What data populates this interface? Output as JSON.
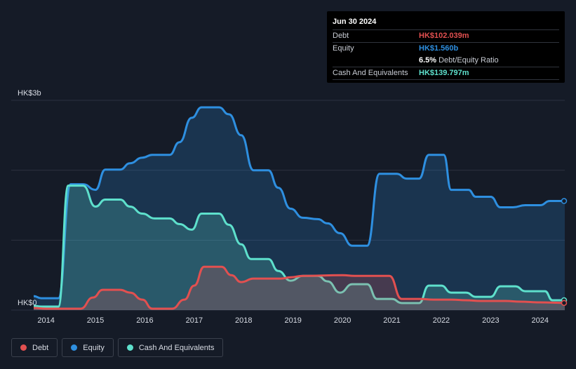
{
  "tooltip": {
    "date": "Jun 30 2024",
    "rows": [
      {
        "label": "Debt",
        "value": "HK$102.039m",
        "color": "#e25050"
      },
      {
        "label": "Equity",
        "value": "HK$1.560b",
        "color": "#2e8fe0"
      },
      {
        "label": "",
        "value": "6.5%",
        "suffix": "Debt/Equity Ratio",
        "color": "#ffffff"
      },
      {
        "label": "Cash And Equivalents",
        "value": "HK$139.797m",
        "color": "#5ee0cc"
      }
    ]
  },
  "legend": [
    {
      "label": "Debt",
      "color": "#e25050"
    },
    {
      "label": "Equity",
      "color": "#2e8fe0"
    },
    {
      "label": "Cash And Equivalents",
      "color": "#5ee0cc"
    }
  ],
  "chart_data": {
    "type": "area",
    "y_top_label": "HK$3b",
    "y_bottom_label": "HK$0",
    "ylim": [
      0,
      3000
    ],
    "xlim": [
      2013.75,
      2024.5
    ],
    "grid": true,
    "x_ticks": [
      2014,
      2015,
      2016,
      2017,
      2018,
      2019,
      2020,
      2021,
      2022,
      2023,
      2024
    ],
    "x_tick_labels": [
      "2014",
      "2015",
      "2016",
      "2017",
      "2018",
      "2019",
      "2020",
      "2021",
      "2022",
      "2023",
      "2024"
    ],
    "series": [
      {
        "name": "Equity",
        "color": "#2e8fe0",
        "points": [
          [
            2013.75,
            200
          ],
          [
            2013.9,
            170
          ],
          [
            2014.25,
            170
          ],
          [
            2014.5,
            1800
          ],
          [
            2014.75,
            1800
          ],
          [
            2015.0,
            1720
          ],
          [
            2015.2,
            2010
          ],
          [
            2015.5,
            2010
          ],
          [
            2015.7,
            2100
          ],
          [
            2015.95,
            2180
          ],
          [
            2016.15,
            2220
          ],
          [
            2016.5,
            2220
          ],
          [
            2016.7,
            2400
          ],
          [
            2016.95,
            2750
          ],
          [
            2017.15,
            2900
          ],
          [
            2017.5,
            2900
          ],
          [
            2017.7,
            2800
          ],
          [
            2017.95,
            2500
          ],
          [
            2018.2,
            2000
          ],
          [
            2018.5,
            2000
          ],
          [
            2018.7,
            1750
          ],
          [
            2018.95,
            1450
          ],
          [
            2019.2,
            1320
          ],
          [
            2019.5,
            1300
          ],
          [
            2019.7,
            1240
          ],
          [
            2019.95,
            1100
          ],
          [
            2020.2,
            920
          ],
          [
            2020.5,
            920
          ],
          [
            2020.75,
            1950
          ],
          [
            2021.1,
            1950
          ],
          [
            2021.3,
            1880
          ],
          [
            2021.55,
            1880
          ],
          [
            2021.75,
            2220
          ],
          [
            2022.05,
            2220
          ],
          [
            2022.2,
            1720
          ],
          [
            2022.55,
            1720
          ],
          [
            2022.7,
            1620
          ],
          [
            2023.0,
            1620
          ],
          [
            2023.2,
            1470
          ],
          [
            2023.45,
            1470
          ],
          [
            2023.7,
            1500
          ],
          [
            2024.0,
            1500
          ],
          [
            2024.2,
            1560
          ],
          [
            2024.5,
            1560
          ]
        ]
      },
      {
        "name": "Cash And Equivalents",
        "color": "#5ee0cc",
        "points": [
          [
            2013.75,
            60
          ],
          [
            2013.9,
            50
          ],
          [
            2014.25,
            50
          ],
          [
            2014.45,
            1780
          ],
          [
            2014.75,
            1780
          ],
          [
            2015.0,
            1480
          ],
          [
            2015.2,
            1580
          ],
          [
            2015.5,
            1580
          ],
          [
            2015.7,
            1480
          ],
          [
            2015.95,
            1380
          ],
          [
            2016.2,
            1310
          ],
          [
            2016.5,
            1310
          ],
          [
            2016.7,
            1230
          ],
          [
            2016.95,
            1150
          ],
          [
            2017.15,
            1380
          ],
          [
            2017.5,
            1380
          ],
          [
            2017.7,
            1220
          ],
          [
            2017.95,
            940
          ],
          [
            2018.15,
            730
          ],
          [
            2018.5,
            730
          ],
          [
            2018.7,
            560
          ],
          [
            2018.95,
            420
          ],
          [
            2019.2,
            490
          ],
          [
            2019.5,
            490
          ],
          [
            2019.7,
            410
          ],
          [
            2019.95,
            250
          ],
          [
            2020.2,
            370
          ],
          [
            2020.5,
            370
          ],
          [
            2020.7,
            160
          ],
          [
            2021.0,
            160
          ],
          [
            2021.2,
            100
          ],
          [
            2021.55,
            100
          ],
          [
            2021.75,
            350
          ],
          [
            2022.0,
            350
          ],
          [
            2022.2,
            250
          ],
          [
            2022.5,
            250
          ],
          [
            2022.7,
            190
          ],
          [
            2023.0,
            190
          ],
          [
            2023.2,
            340
          ],
          [
            2023.5,
            340
          ],
          [
            2023.7,
            270
          ],
          [
            2024.1,
            270
          ],
          [
            2024.25,
            140
          ],
          [
            2024.5,
            140
          ]
        ]
      },
      {
        "name": "Debt",
        "color": "#e25050",
        "points": [
          [
            2013.75,
            30
          ],
          [
            2014.0,
            20
          ],
          [
            2014.7,
            20
          ],
          [
            2014.95,
            180
          ],
          [
            2015.15,
            290
          ],
          [
            2015.5,
            290
          ],
          [
            2015.7,
            250
          ],
          [
            2015.95,
            150
          ],
          [
            2016.15,
            20
          ],
          [
            2016.55,
            20
          ],
          [
            2016.8,
            150
          ],
          [
            2017.0,
            350
          ],
          [
            2017.2,
            620
          ],
          [
            2017.55,
            620
          ],
          [
            2017.75,
            500
          ],
          [
            2017.95,
            400
          ],
          [
            2018.2,
            450
          ],
          [
            2018.75,
            450
          ],
          [
            2018.95,
            470
          ],
          [
            2019.2,
            490
          ],
          [
            2020.0,
            500
          ],
          [
            2020.25,
            490
          ],
          [
            2020.95,
            490
          ],
          [
            2021.2,
            160
          ],
          [
            2021.55,
            160
          ],
          [
            2021.85,
            150
          ],
          [
            2022.2,
            150
          ],
          [
            2022.5,
            140
          ],
          [
            2022.8,
            130
          ],
          [
            2023.3,
            130
          ],
          [
            2023.6,
            120
          ],
          [
            2024.0,
            110
          ],
          [
            2024.5,
            102
          ]
        ]
      }
    ]
  }
}
